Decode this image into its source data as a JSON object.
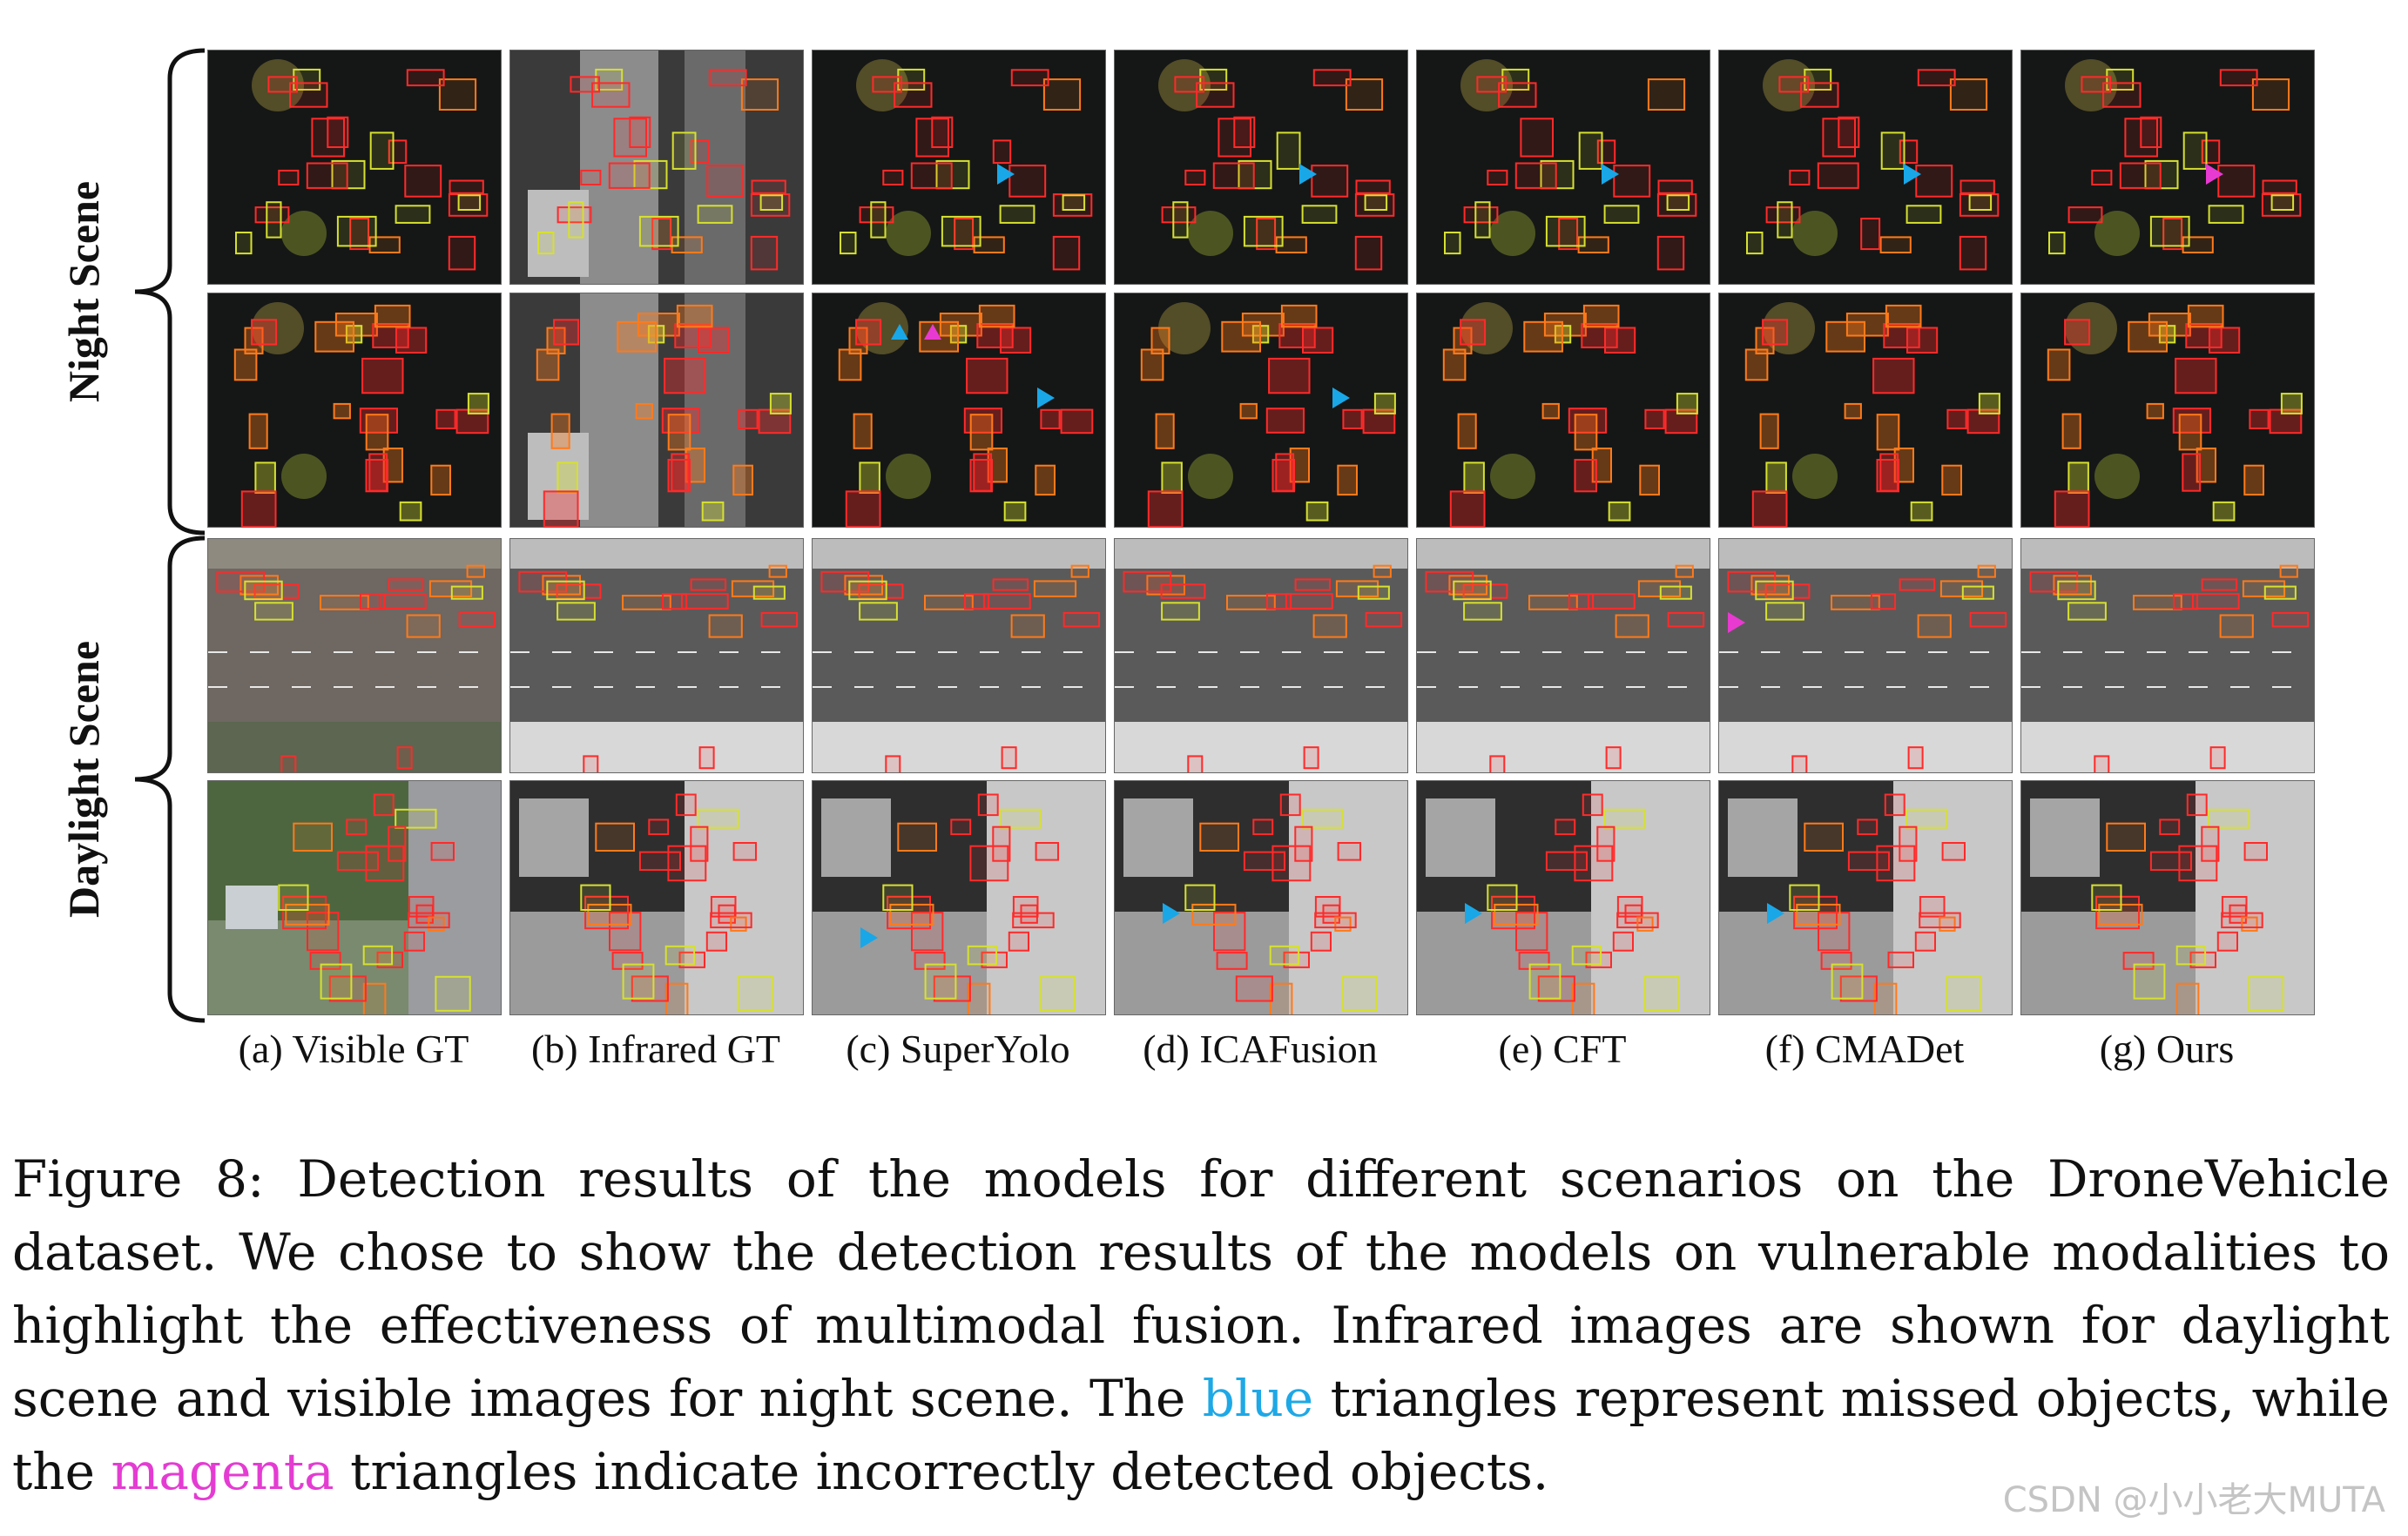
{
  "figure": {
    "row_groups": [
      {
        "label": "Night Scene"
      },
      {
        "label": "Daylight Scene"
      }
    ],
    "columns": [
      {
        "label": "(a) Visible GT"
      },
      {
        "label": "(b) Infrared GT"
      },
      {
        "label": "(c) SuperYolo"
      },
      {
        "label": "(d) ICAFusion"
      },
      {
        "label": "(e) CFT"
      },
      {
        "label": "(f) CMADet"
      },
      {
        "label": "(g) Ours"
      }
    ],
    "colors": {
      "blue_triangle": "#19a7e8",
      "magenta_triangle": "#e83ad0",
      "car_box": "#ff2a2a",
      "truck_box": "#ff7a1a",
      "bus_box": "#d6e030"
    }
  },
  "caption": {
    "prefix": "Figure 8:  Detection results of the models for different scenarios on the DroneVehicle dataset. We chose to show the detection results of the models on vulnerable modalities to highlight the effectiveness of multimodal fusion. Infrared images are shown for daylight scene and visible images for night scene. The ",
    "blue": "blue",
    "middle": " triangles represent missed objects, while the ",
    "magenta": "magenta",
    "suffix": " triangles indicate incorrectly detected objects."
  },
  "watermark": "CSDN @小小老大MUTA"
}
